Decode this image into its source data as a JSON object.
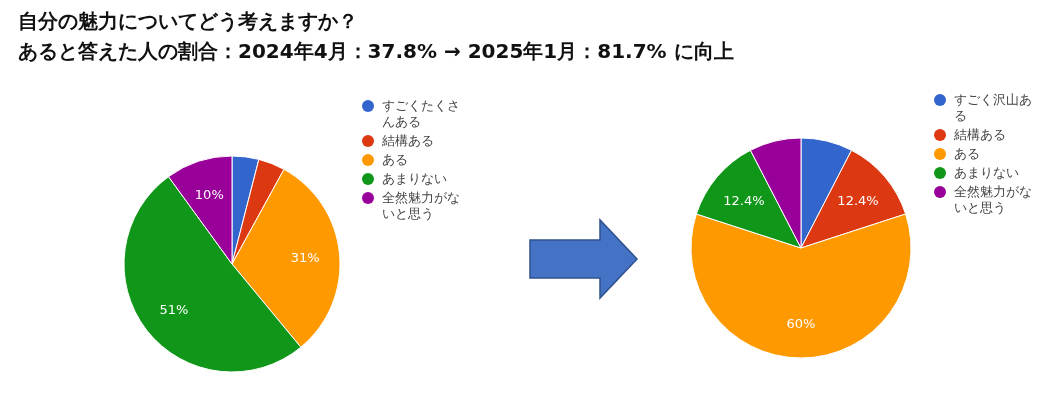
{
  "chart_data": [
    {
      "type": "pie",
      "title": "自分の魅力についてどう考えますか？",
      "subtitle": "あると答えた人の割合：2024年4月：37.8% → 2025年1月：81.7% に向上",
      "categories": [
        "すごくたくさんある",
        "結構ある",
        "ある",
        "あまりない",
        "全然魅力がないと思う"
      ],
      "values": [
        4,
        4,
        31,
        51,
        10
      ],
      "value_labels": [
        null,
        null,
        "31%",
        "51%",
        "10%"
      ],
      "colors": [
        "#3366cc",
        "#dc3912",
        "#ff9900",
        "#109618",
        "#990099"
      ],
      "legend": "right"
    },
    {
      "type": "pie",
      "categories": [
        "すごく沢山ある",
        "結構ある",
        "ある",
        "あまりない",
        "全然魅力がないと思う"
      ],
      "values": [
        7.6,
        12.4,
        60,
        12.4,
        7.6
      ],
      "value_labels": [
        null,
        "12.4%",
        "60%",
        "12.4%",
        null
      ],
      "colors": [
        "#3366cc",
        "#dc3912",
        "#ff9900",
        "#109618",
        "#990099"
      ],
      "legend": "right"
    }
  ]
}
